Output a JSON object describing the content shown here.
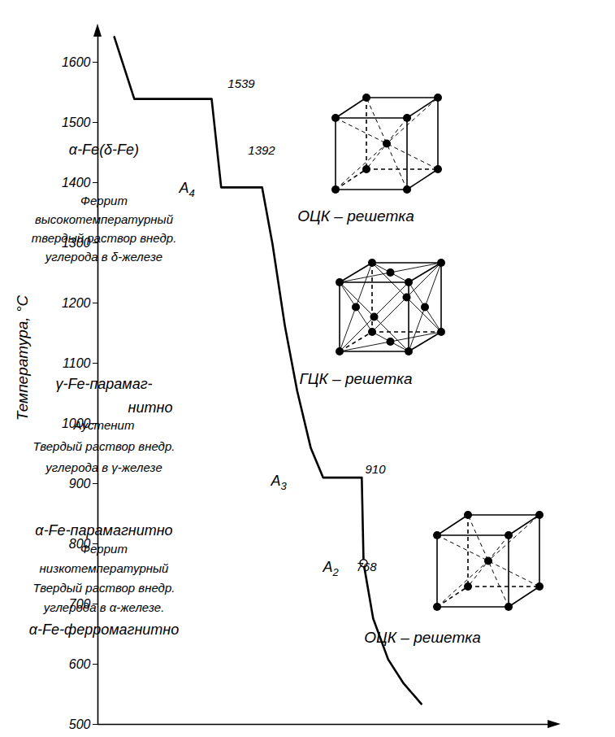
{
  "chart_data": {
    "type": "line",
    "ylabel": "Температура, °С",
    "x": [
      3.6,
      8.0,
      25.0,
      27.1,
      36.1,
      38.4,
      41.1,
      43.8,
      46.8,
      49.5,
      58.0,
      58.4,
      60.5,
      63.8,
      67.2,
      71.1
    ],
    "values": [
      1642,
      1539,
      1539,
      1392,
      1392,
      1297,
      1162,
      1054,
      959,
      910,
      910,
      768,
      676,
      608,
      568,
      534
    ],
    "color": "#000000",
    "xlim": [
      0,
      100
    ],
    "ylim": [
      500,
      1650
    ],
    "yticks": [
      500,
      600,
      700,
      800,
      900,
      1000,
      1100,
      1200,
      1300,
      1400,
      1500,
      1600
    ],
    "tick_labels": "y",
    "grid": false,
    "points": [
      {
        "label": null,
        "value": 1539
      },
      {
        "label": "A4",
        "value": 1392
      },
      {
        "label": "A3",
        "value": 910
      },
      {
        "label": "A2",
        "value": 768,
        "x": 58.4,
        "marker": "circle"
      }
    ],
    "annotations": [
      [
        "α-Fe(δ-Fe)"
      ],
      [
        "Феррит",
        "высокотемпературный",
        "твердый раствор внедр.",
        "углерода в δ-железе"
      ],
      [
        "γ-Fe-парамаг-",
        "нитно"
      ],
      [
        "Аустенит",
        "Твердый раствор внедр.",
        "углерода в γ-железе"
      ],
      [
        "α-Fe-парамагнитно"
      ],
      [
        "Феррит",
        "низкотемпературный",
        "Твердый раствор внедр.",
        "углерода в α-железе."
      ],
      [
        "α-Fe-ферромагнитно"
      ]
    ],
    "lattices": [
      "ОЦК – решетка",
      "ГЦК – решетка",
      "ОЦК – решетка"
    ]
  }
}
